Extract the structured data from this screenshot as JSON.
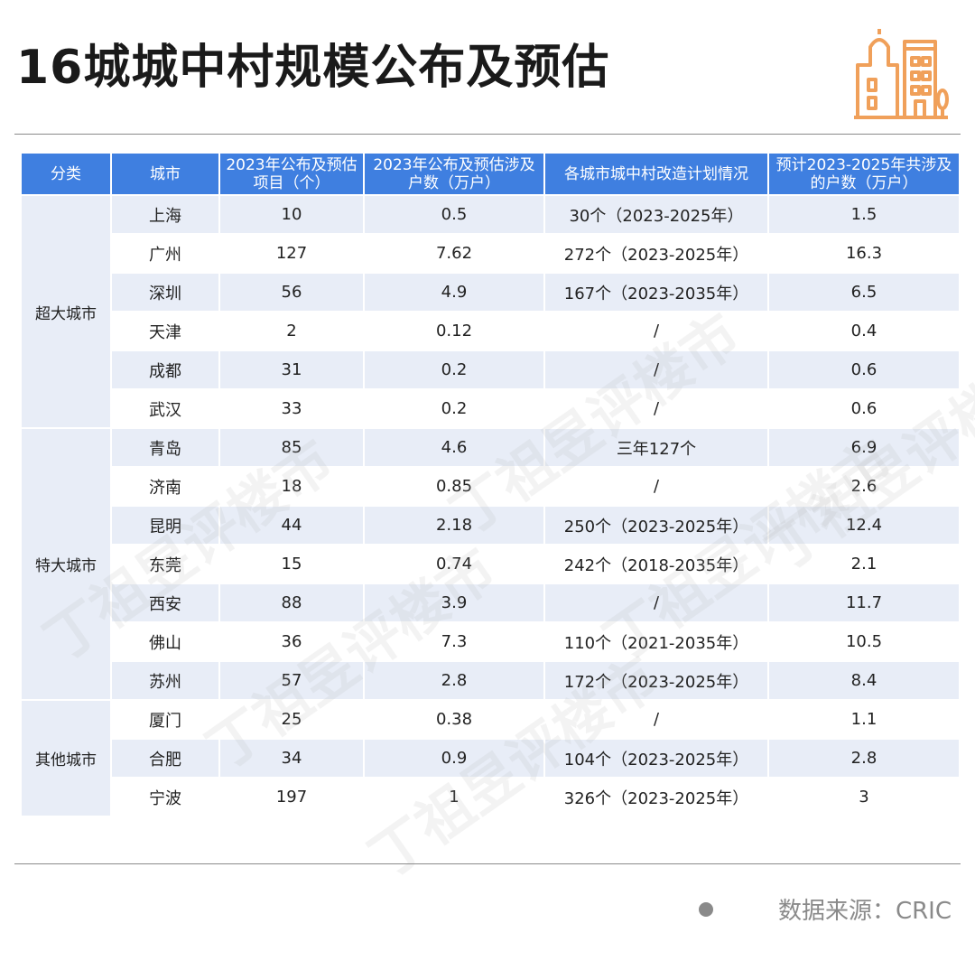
{
  "title": "16城城中村规模公布及预估",
  "table": {
    "headers": [
      "分类",
      "城市",
      "2023年公布及预估项目（个）",
      "2023年公布及预估涉及户数（万户）",
      "各城市城中村改造计划情况",
      "预计2023-2025年共涉及的户数（万户）"
    ],
    "groups": [
      {
        "category": "超大城市",
        "rows": [
          [
            "上海",
            "10",
            "0.5",
            "30个（2023-2025年）",
            "1.5"
          ],
          [
            "广州",
            "127",
            "7.62",
            "272个（2023-2025年）",
            "16.3"
          ],
          [
            "深圳",
            "56",
            "4.9",
            "167个（2023-2035年）",
            "6.5"
          ],
          [
            "天津",
            "2",
            "0.12",
            "/",
            "0.4"
          ],
          [
            "成都",
            "31",
            "0.2",
            "/",
            "0.6"
          ],
          [
            "武汉",
            "33",
            "0.2",
            "/",
            "0.6"
          ]
        ]
      },
      {
        "category": "特大城市",
        "rows": [
          [
            "青岛",
            "85",
            "4.6",
            "三年127个",
            "6.9"
          ],
          [
            "济南",
            "18",
            "0.85",
            "/",
            "2.6"
          ],
          [
            "昆明",
            "44",
            "2.18",
            "250个（2023-2025年）",
            "12.4"
          ],
          [
            "东莞",
            "15",
            "0.74",
            "242个（2018-2035年）",
            "2.1"
          ],
          [
            "西安",
            "88",
            "3.9",
            "/",
            "11.7"
          ],
          [
            "佛山",
            "36",
            "7.3",
            "110个（2021-2035年）",
            "10.5"
          ],
          [
            "苏州",
            "57",
            "2.8",
            "172个（2023-2025年）",
            "8.4"
          ]
        ]
      },
      {
        "category": "其他城市",
        "rows": [
          [
            "厦门",
            "25",
            "0.38",
            "/",
            "1.1"
          ],
          [
            "合肥",
            "34",
            "0.9",
            "104个（2023-2025年）",
            "2.8"
          ],
          [
            "宁波",
            "197",
            "1",
            "326个（2023-2025年）",
            "3"
          ]
        ]
      }
    ]
  },
  "source": "数据来源：CRIC",
  "watermark": [
    "丁祖昱评楼市",
    "丁祖昱评楼市",
    "丁祖昱评楼市",
    "丁祖昱评楼市",
    "丁祖昱评楼市",
    "丁祖昱评楼市"
  ],
  "colors": {
    "header": "#3f7fe0",
    "stripe": "#e8edf7",
    "logo": "#f0a05a",
    "source": "#8a8a8a"
  },
  "icons": {
    "logo": "city-buildings-icon"
  }
}
